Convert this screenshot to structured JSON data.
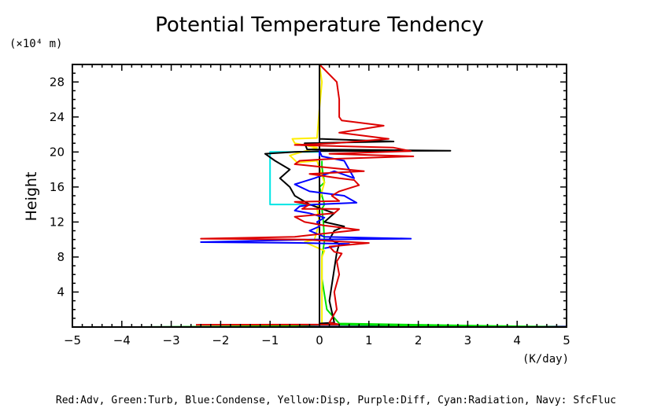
{
  "chart_data": {
    "type": "line",
    "title": "Potential Temperature Tendency",
    "ylabel": "Height",
    "y_unit_label": "(×10⁴ m)",
    "x_unit_label": "(K/day)",
    "legend_text": "Red:Adv, Green:Turb, Blue:Condense, Yellow:Disp, Purple:Diff, Cyan:Radiation, Navy: SfcFluc",
    "xlim": [
      -5,
      5
    ],
    "ylim": [
      0,
      30
    ],
    "x_ticks": [
      -5,
      -4,
      -3,
      -2,
      -1,
      0,
      1,
      2,
      3,
      4,
      5
    ],
    "y_ticks": [
      4,
      8,
      12,
      16,
      20,
      24,
      28
    ],
    "grid": false,
    "series": [
      {
        "name": "Radiation",
        "color": "#00e5e5",
        "points": [
          [
            0,
            20
          ],
          [
            -1,
            20
          ],
          [
            -1,
            14
          ],
          [
            0,
            14
          ]
        ]
      },
      {
        "name": "SfcFluc",
        "color": "#000080",
        "points": [
          [
            -3.7,
            0
          ],
          [
            0,
            0.05
          ],
          [
            5,
            0.05
          ]
        ]
      },
      {
        "name": "Turb",
        "color": "#00e000",
        "points": [
          [
            -3.7,
            0
          ],
          [
            -1,
            0.1
          ],
          [
            0.2,
            0.3
          ],
          [
            2.7,
            0.1
          ],
          [
            5,
            0
          ],
          [
            0.4,
            0.4
          ],
          [
            0.15,
            2
          ],
          [
            0.05,
            5.5
          ],
          [
            0.05,
            8
          ],
          [
            0.1,
            9.8
          ],
          [
            0.08,
            12
          ],
          [
            0.05,
            13.5
          ],
          [
            0.1,
            14
          ],
          [
            0.0,
            16
          ],
          [
            0.1,
            16.5
          ],
          [
            0.05,
            18.3
          ],
          [
            0.05,
            19
          ]
        ]
      },
      {
        "name": "Disp",
        "color": "#ffee00",
        "points": [
          [
            0,
            30
          ],
          [
            0.05,
            28
          ],
          [
            0,
            25
          ],
          [
            -0.05,
            21.6
          ],
          [
            -0.55,
            21.5
          ],
          [
            -0.5,
            21
          ],
          [
            -0.05,
            20.5
          ],
          [
            -0.6,
            19.6
          ],
          [
            -0.45,
            18.8
          ],
          [
            -0.05,
            19
          ],
          [
            0.1,
            16.5
          ],
          [
            -0.05,
            13.5
          ],
          [
            0,
            12
          ],
          [
            -0.1,
            10
          ],
          [
            -0.3,
            9.7
          ],
          [
            0.1,
            8.7
          ],
          [
            0.05,
            8
          ],
          [
            0.05,
            5
          ],
          [
            0.05,
            2
          ],
          [
            0.05,
            0.4
          ]
        ]
      },
      {
        "name": "Black",
        "color": "#000000",
        "points": [
          [
            0,
            30
          ],
          [
            0,
            0.4
          ],
          [
            0.3,
            0.5
          ],
          [
            0.2,
            3
          ],
          [
            0.35,
            8.5
          ],
          [
            0.4,
            9.5
          ],
          [
            0.2,
            10
          ],
          [
            0.3,
            11
          ],
          [
            0.5,
            11.5
          ],
          [
            0.1,
            12
          ],
          [
            0.3,
            13
          ],
          [
            -0.2,
            14
          ],
          [
            -0.5,
            15
          ],
          [
            -0.6,
            16
          ],
          [
            -0.8,
            17
          ],
          [
            -0.6,
            18
          ],
          [
            -0.9,
            19
          ],
          [
            -1.1,
            19.8
          ],
          [
            -0.5,
            20
          ],
          [
            0,
            20.1
          ],
          [
            2.65,
            20.15
          ],
          [
            -0.25,
            20.3
          ],
          [
            -0.3,
            21
          ],
          [
            1.5,
            21.2
          ],
          [
            0,
            21.5
          ]
        ]
      },
      {
        "name": "Condense",
        "color": "#0000ff",
        "points": [
          [
            0,
            19.5
          ],
          [
            0,
            20.1
          ],
          [
            0.05,
            19.5
          ],
          [
            0.5,
            19
          ],
          [
            0.7,
            17
          ],
          [
            0.3,
            17.8
          ],
          [
            -0.1,
            17
          ],
          [
            -0.5,
            16.3
          ],
          [
            -0.2,
            15.5
          ],
          [
            0.5,
            15
          ],
          [
            0.75,
            14.2
          ],
          [
            -0.1,
            14
          ],
          [
            -0.4,
            13.8
          ],
          [
            -0.5,
            13.3
          ],
          [
            -0.2,
            13
          ],
          [
            0.1,
            12.5
          ],
          [
            -0.05,
            12
          ],
          [
            0,
            11.5
          ],
          [
            -0.2,
            11
          ],
          [
            0.1,
            10.3
          ],
          [
            1.85,
            10.1
          ],
          [
            -0.2,
            10
          ],
          [
            -2.4,
            9.7
          ],
          [
            -0.3,
            9.6
          ],
          [
            0.6,
            9.5
          ],
          [
            0.1,
            9
          ]
        ]
      },
      {
        "name": "Adv",
        "color": "#dd0000",
        "points": [
          [
            0,
            30
          ],
          [
            0.35,
            28
          ],
          [
            0.4,
            26
          ],
          [
            0.4,
            24
          ],
          [
            0.45,
            23.6
          ],
          [
            1.3,
            23
          ],
          [
            0.4,
            22.2
          ],
          [
            1.4,
            21.5
          ],
          [
            0.3,
            21
          ],
          [
            -0.5,
            20.8
          ],
          [
            1.5,
            20.5
          ],
          [
            1.85,
            20.1
          ],
          [
            0.2,
            19.8
          ],
          [
            1.9,
            19.5
          ],
          [
            0.2,
            19.2
          ],
          [
            -0.4,
            19
          ],
          [
            -0.5,
            18.6
          ],
          [
            0.2,
            18.2
          ],
          [
            0.9,
            17.8
          ],
          [
            -0.2,
            17.5
          ],
          [
            0.4,
            17
          ],
          [
            0.7,
            16.8
          ],
          [
            0.8,
            16.2
          ],
          [
            0.4,
            15.5
          ],
          [
            0.25,
            15
          ],
          [
            0.4,
            14.4
          ],
          [
            -0.5,
            14.3
          ],
          [
            -0.2,
            14
          ],
          [
            -0.35,
            13.5
          ],
          [
            0.4,
            13.5
          ],
          [
            0.3,
            13
          ],
          [
            -0.5,
            12.6
          ],
          [
            -0.3,
            12
          ],
          [
            0.1,
            11.6
          ],
          [
            0.4,
            11.4
          ],
          [
            0.8,
            11.1
          ],
          [
            -0.2,
            10.5
          ],
          [
            -0.5,
            10.3
          ],
          [
            -2.4,
            10.1
          ],
          [
            -0.3,
            10
          ],
          [
            0.3,
            9.8
          ],
          [
            1.0,
            9.6
          ],
          [
            0.2,
            9.2
          ],
          [
            0.3,
            8.6
          ],
          [
            0.45,
            8.4
          ],
          [
            0.35,
            7.5
          ],
          [
            0.4,
            6
          ],
          [
            0.3,
            4
          ],
          [
            0.35,
            2
          ],
          [
            0.25,
            1
          ],
          [
            0.2,
            0.5
          ],
          [
            0.4,
            0.3
          ],
          [
            -2.5,
            0.25
          ]
        ]
      }
    ]
  }
}
